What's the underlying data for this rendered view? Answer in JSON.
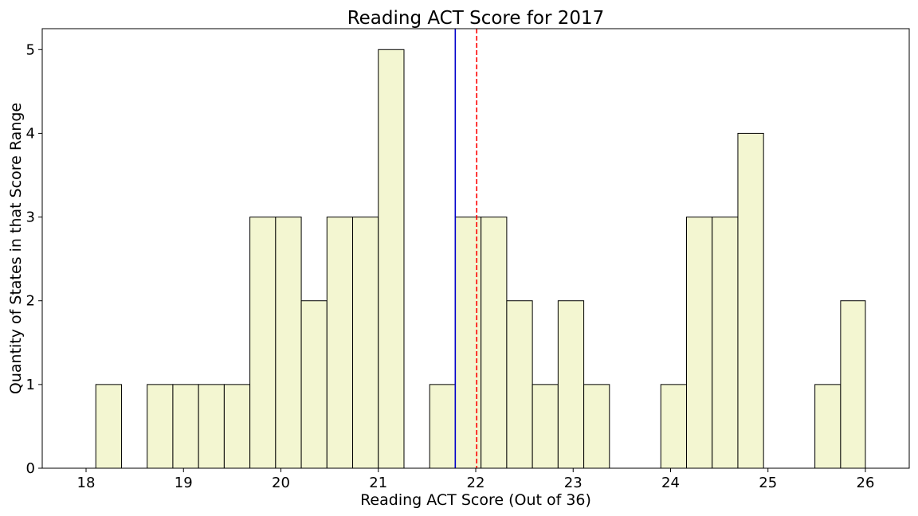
{
  "chart_data": {
    "type": "bar",
    "title": "Reading ACT Score for 2017",
    "xlabel": "Reading ACT Score (Out of 36)",
    "ylabel": "Quantity of States in that Score Range",
    "xlim": [
      17.55,
      26.45
    ],
    "ylim": [
      0,
      5.25
    ],
    "x_ticks": [
      18,
      19,
      20,
      21,
      22,
      23,
      24,
      25,
      26
    ],
    "y_ticks": [
      0,
      1,
      2,
      3,
      4,
      5
    ],
    "bin_edges": [
      18.1,
      18.3636,
      18.6273,
      18.8909,
      19.1545,
      19.4182,
      19.6818,
      19.9455,
      20.2091,
      20.4727,
      20.7364,
      21.0,
      21.2636,
      21.5273,
      21.7909,
      22.0545,
      22.3182,
      22.5818,
      22.8455,
      23.1091,
      23.3727,
      23.6364,
      23.9,
      24.1636,
      24.4273,
      24.6909,
      24.9545,
      25.2182,
      25.4818,
      25.7455,
      26.0
    ],
    "values": [
      1,
      0,
      1,
      1,
      1,
      1,
      3,
      3,
      2,
      3,
      3,
      5,
      0,
      1,
      3,
      3,
      2,
      1,
      2,
      1,
      0,
      0,
      1,
      3,
      3,
      4,
      0,
      0,
      1,
      2
    ],
    "bar_color": "#f3f6d1",
    "edge_color": "#000000",
    "reference_lines": [
      {
        "x": 21.79,
        "color": "#0000cc",
        "style": "solid"
      },
      {
        "x": 22.01,
        "color": "#ff0000",
        "style": "dashed"
      }
    ],
    "grid": false
  }
}
